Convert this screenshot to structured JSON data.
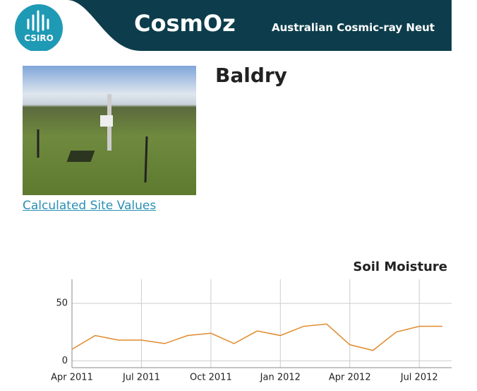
{
  "header": {
    "logo_text": "CSIRO",
    "title": "CosmOz",
    "subtitle": "Australian Cosmic-ray Neut"
  },
  "site": {
    "name": "Baldry",
    "link": "Calculated Site Values"
  },
  "chart_data": {
    "type": "line",
    "title": "Soil Moisture",
    "x": [
      "2011-04",
      "2011-05",
      "2011-06",
      "2011-07",
      "2011-08",
      "2011-09",
      "2011-10",
      "2011-11",
      "2011-12",
      "2012-01",
      "2012-02",
      "2012-03",
      "2012-04",
      "2012-05",
      "2012-06",
      "2012-07",
      "2012-08"
    ],
    "values": [
      10,
      22,
      18,
      18,
      15,
      22,
      24,
      15,
      26,
      22,
      30,
      32,
      14,
      9,
      25,
      30,
      30
    ],
    "color": "#e08a2c",
    "xlim": [
      "2011-04",
      "2012-08"
    ],
    "xticks": [
      {
        "value": "2011-04",
        "label": "Apr 2011"
      },
      {
        "value": "2011-07",
        "label": "Jul 2011"
      },
      {
        "value": "2011-10",
        "label": "Oct 2011"
      },
      {
        "value": "2012-01",
        "label": "Jan 2012"
      },
      {
        "value": "2012-04",
        "label": "Apr 2012"
      },
      {
        "value": "2012-07",
        "label": "Jul 2012"
      }
    ],
    "ylim": [
      -6,
      71
    ],
    "yticks": [
      0,
      50
    ],
    "grid": true
  }
}
